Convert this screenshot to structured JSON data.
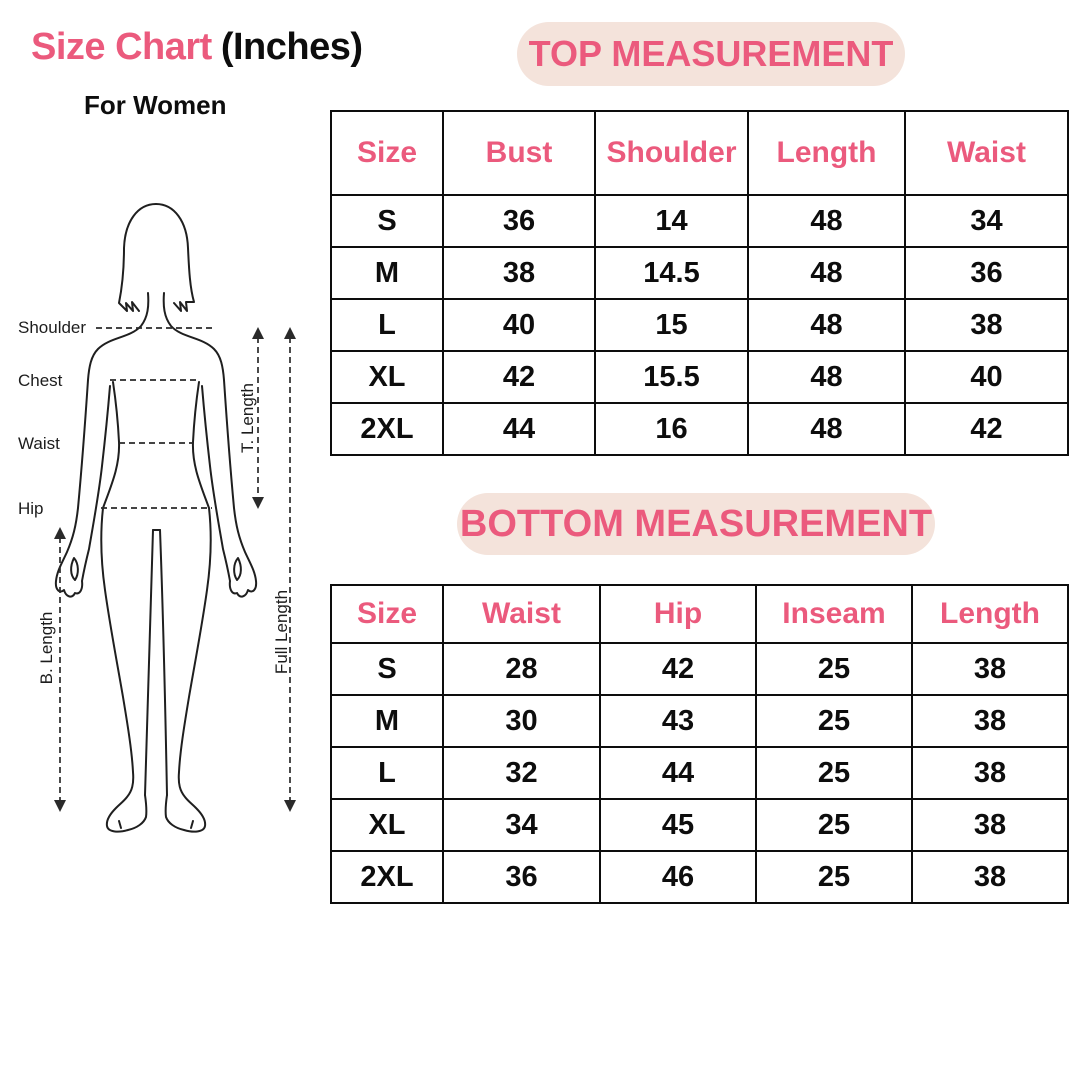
{
  "colors": {
    "accent_pink": "#EB5A7D",
    "badge_background": "#F4E3DB",
    "ink": "#0d0d0d"
  },
  "header": {
    "title_main": "Size Chart",
    "title_suffix": "(Inches)",
    "subtitle": "For Women"
  },
  "diagram": {
    "labels": {
      "shoulder": "Shoulder",
      "chest": "Chest",
      "waist": "Waist",
      "hip": "Hip",
      "t_length": "T. Length",
      "full_length": "Full Length",
      "b_length": "B. Length"
    }
  },
  "top_section": {
    "badge": "TOP MEASUREMENT",
    "columns": [
      "Size",
      "Bust",
      "Shoulder",
      "Length",
      "Waist"
    ],
    "rows": [
      [
        "S",
        "36",
        "14",
        "48",
        "34"
      ],
      [
        "M",
        "38",
        "14.5",
        "48",
        "36"
      ],
      [
        "L",
        "40",
        "15",
        "48",
        "38"
      ],
      [
        "XL",
        "42",
        "15.5",
        "48",
        "40"
      ],
      [
        "2XL",
        "44",
        "16",
        "48",
        "42"
      ]
    ]
  },
  "bottom_section": {
    "badge": "BOTTOM MEASUREMENT",
    "columns": [
      "Size",
      "Waist",
      "Hip",
      "Inseam",
      "Length"
    ],
    "rows": [
      [
        "S",
        "28",
        "42",
        "25",
        "38"
      ],
      [
        "M",
        "30",
        "43",
        "25",
        "38"
      ],
      [
        "L",
        "32",
        "44",
        "25",
        "38"
      ],
      [
        "XL",
        "34",
        "45",
        "25",
        "38"
      ],
      [
        "2XL",
        "36",
        "46",
        "25",
        "38"
      ]
    ]
  }
}
